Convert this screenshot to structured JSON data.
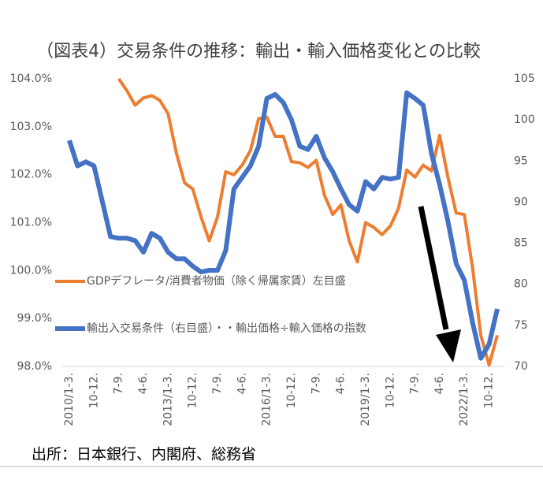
{
  "chart_data": {
    "type": "line",
    "title": "（図表4）交易条件の推移：輸出・輸入価格変化との比較",
    "source": "出所：日本銀行、内閣府、総務省",
    "categories": [
      "2010/1-3.",
      null,
      null,
      "10-12.",
      null,
      null,
      "7-9.",
      null,
      null,
      "4-6.",
      null,
      null,
      "2013/1-3.",
      null,
      null,
      "10-12.",
      null,
      null,
      "7-9.",
      null,
      null,
      "4-6.",
      null,
      null,
      "2016/1-3.",
      null,
      null,
      "10-12.",
      null,
      null,
      "7-9.",
      null,
      null,
      "4-6.",
      null,
      null,
      "2019/1-3.",
      null,
      null,
      "10-12.",
      null,
      null,
      "7-9.",
      null,
      null,
      "4-6.",
      null,
      null,
      "2022/1-3.",
      null,
      null,
      "10-12.",
      null
    ],
    "series": [
      {
        "name": "GDPデフレータ/消費者物価（除く帰属家賃）左目盛",
        "color": "#ed7d31",
        "axis": "y",
        "values": [
          null,
          null,
          null,
          null,
          null,
          null,
          104.0,
          103.75,
          103.45,
          103.6,
          103.65,
          103.55,
          103.27,
          102.45,
          101.83,
          101.7,
          101.12,
          100.62,
          101.12,
          102.06,
          102.0,
          102.2,
          102.5,
          103.17,
          103.2,
          102.8,
          102.8,
          102.27,
          102.25,
          102.15,
          102.3,
          101.57,
          101.17,
          101.37,
          100.62,
          100.18,
          101.0,
          100.9,
          100.75,
          100.93,
          101.3,
          102.1,
          101.95,
          102.2,
          102.08,
          102.82,
          101.95,
          101.2,
          101.17,
          100.05,
          98.65,
          98.03,
          98.65
        ]
      },
      {
        "name": "輸出入交易条件（右目盛）・・輸出価格÷輸入価格の指数",
        "color": "#4472c4",
        "axis": "y2",
        "values": [
          97.5,
          94.4,
          94.9,
          94.4,
          90.1,
          85.8,
          85.6,
          85.6,
          85.3,
          83.9,
          86.2,
          85.6,
          83.9,
          83.1,
          83.1,
          82.2,
          81.5,
          81.7,
          81.7,
          84.1,
          91.6,
          93.0,
          94.4,
          96.8,
          102.6,
          103.1,
          102.1,
          100.0,
          96.8,
          96.4,
          98.0,
          95.4,
          93.7,
          91.6,
          89.7,
          88.9,
          92.5,
          91.6,
          93.0,
          92.8,
          93.0,
          103.3,
          102.6,
          101.8,
          95.9,
          92.1,
          87.7,
          82.5,
          80.5,
          75.3,
          71.0,
          72.7,
          77.0
        ]
      }
    ],
    "ylim": [
      98,
      104
    ],
    "yticks": [
      {
        "value": 98,
        "label": "98.0%"
      },
      {
        "value": 99,
        "label": "99.0%"
      },
      {
        "value": 100,
        "label": "100.0%"
      },
      {
        "value": 101,
        "label": "101.0%"
      },
      {
        "value": 102,
        "label": "102.0%"
      },
      {
        "value": 103,
        "label": "103.0%"
      },
      {
        "value": 104,
        "label": "104.0%"
      }
    ],
    "y2lim": [
      70,
      105
    ],
    "y2ticks": [
      70,
      75,
      80,
      85,
      90,
      95,
      100,
      105
    ],
    "grid": false
  }
}
